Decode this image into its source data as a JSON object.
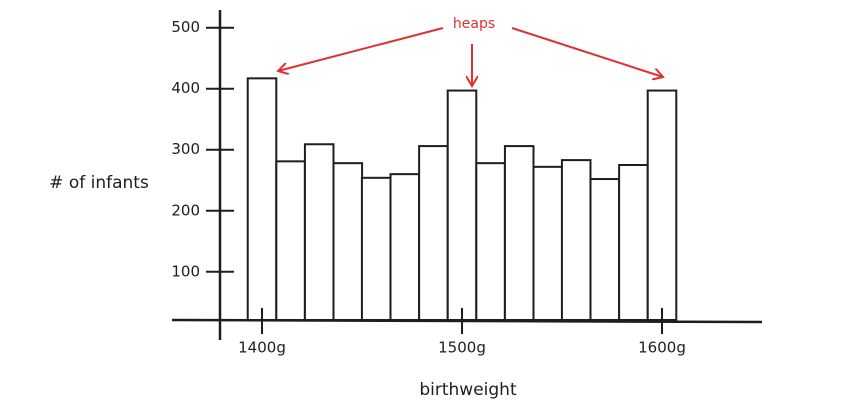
{
  "chart_data": {
    "type": "histogram",
    "annotation": "heaps",
    "ylabel": "# of infants",
    "xlabel": "birthweight",
    "x": [
      1400,
      1414.3,
      1428.6,
      1442.9,
      1457.1,
      1471.4,
      1485.7,
      1500,
      1514.3,
      1528.6,
      1542.9,
      1557.1,
      1571.4,
      1585.7,
      1600
    ],
    "values": [
      417,
      281,
      309,
      278,
      254,
      260,
      306,
      397,
      278,
      306,
      272,
      283,
      252,
      275,
      397
    ],
    "color": "#ffffff",
    "xlim": [
      1355,
      1650
    ],
    "xticks": [
      {
        "value": 1400,
        "label": "1400g"
      },
      {
        "value": 1500,
        "label": "1500g"
      },
      {
        "value": 1600,
        "label": "1600g"
      }
    ],
    "ylim": [
      21,
      529
    ],
    "yticks": [
      100,
      200,
      300,
      400,
      500
    ]
  }
}
